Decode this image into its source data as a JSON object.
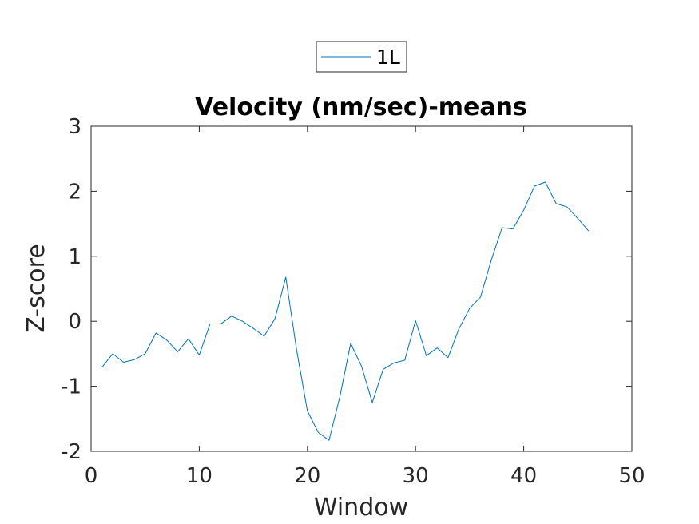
{
  "chart_data": {
    "type": "line",
    "title": "Velocity (nm/sec)-means",
    "xlabel": "Window",
    "ylabel": "Z-score",
    "xlim": [
      0,
      50
    ],
    "ylim": [
      -2,
      3
    ],
    "xticks": [
      0,
      10,
      20,
      30,
      40,
      50
    ],
    "xtick_labels": [
      "0",
      "10",
      "20",
      "30",
      "40",
      "50"
    ],
    "yticks": [
      -2,
      -1,
      0,
      1,
      2,
      3
    ],
    "ytick_labels": [
      "-2",
      "-1",
      "0",
      "1",
      "2",
      "3"
    ],
    "grid": false,
    "legend": {
      "placement": "top-center, outside plot",
      "entries": [
        "1L"
      ]
    },
    "series": [
      {
        "name": "1L",
        "color": "#0072bd",
        "x": [
          1,
          2,
          3,
          4,
          5,
          6,
          7,
          8,
          9,
          10,
          11,
          12,
          13,
          14,
          15,
          16,
          17,
          18,
          19,
          20,
          21,
          22,
          23,
          24,
          25,
          26,
          27,
          28,
          29,
          30,
          31,
          32,
          33,
          34,
          35,
          36,
          37,
          38,
          39,
          40,
          41,
          42,
          43,
          44,
          45,
          46
        ],
        "y": [
          -0.71,
          -0.5,
          -0.63,
          -0.59,
          -0.5,
          -0.18,
          -0.29,
          -0.47,
          -0.27,
          -0.52,
          -0.04,
          -0.04,
          0.08,
          0.0,
          -0.11,
          -0.23,
          0.04,
          0.68,
          -0.44,
          -1.38,
          -1.71,
          -1.83,
          -1.16,
          -0.34,
          -0.69,
          -1.25,
          -0.74,
          -0.64,
          -0.6,
          0.01,
          -0.53,
          -0.41,
          -0.56,
          -0.12,
          0.2,
          0.37,
          0.94,
          1.44,
          1.42,
          1.71,
          2.08,
          2.14,
          1.81,
          1.76,
          1.58,
          1.39
        ]
      }
    ]
  }
}
